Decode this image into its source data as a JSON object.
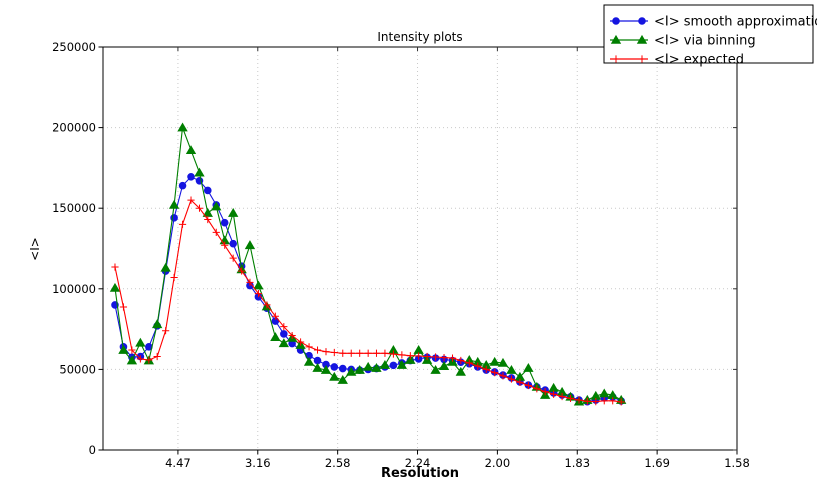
{
  "chart_data": {
    "type": "line",
    "title": "Intensity plots",
    "xlabel": "Resolution",
    "ylabel": "<I>",
    "grid": {
      "show": true,
      "style": "dotted",
      "color": "#c9c9c9"
    },
    "legend": {
      "position": "top-right-outside",
      "border_color": "#000000",
      "background": "#ffffff"
    },
    "x_axis": {
      "min": 0.0031,
      "max": 0.4,
      "scale": "1/d^2",
      "ticks": [
        {
          "value": 0.05,
          "label": "4.47"
        },
        {
          "value": 0.1,
          "label": "3.16"
        },
        {
          "value": 0.15,
          "label": "2.58"
        },
        {
          "value": 0.2,
          "label": "2.24"
        },
        {
          "value": 0.25,
          "label": "2.00"
        },
        {
          "value": 0.3,
          "label": "1.83"
        },
        {
          "value": 0.35,
          "label": "1.69"
        },
        {
          "value": 0.4,
          "label": "1.58"
        }
      ]
    },
    "y_axis": {
      "min": 0,
      "max": 250000,
      "ticks": [
        {
          "value": 0,
          "label": "0"
        },
        {
          "value": 50000,
          "label": "50000"
        },
        {
          "value": 100000,
          "label": "100000"
        },
        {
          "value": 150000,
          "label": "150000"
        },
        {
          "value": 200000,
          "label": "200000"
        },
        {
          "value": 250000,
          "label": "250000"
        }
      ]
    },
    "x": [
      0.0106,
      0.0159,
      0.0212,
      0.0265,
      0.0318,
      0.037,
      0.0423,
      0.0476,
      0.0529,
      0.0582,
      0.0635,
      0.0687,
      0.074,
      0.0793,
      0.0846,
      0.0899,
      0.0951,
      0.1004,
      0.1057,
      0.111,
      0.1163,
      0.1215,
      0.1268,
      0.1321,
      0.1374,
      0.1427,
      0.1479,
      0.1532,
      0.1585,
      0.1638,
      0.1691,
      0.1743,
      0.1796,
      0.1849,
      0.1902,
      0.1955,
      0.2007,
      0.206,
      0.2113,
      0.2166,
      0.2219,
      0.2271,
      0.2324,
      0.2377,
      0.243,
      0.2483,
      0.2535,
      0.2588,
      0.2641,
      0.2694,
      0.2747,
      0.2799,
      0.2852,
      0.2905,
      0.2958,
      0.3011,
      0.3063,
      0.3116,
      0.3169,
      0.3222,
      0.3275
    ],
    "series": [
      {
        "name": "<I> smooth approximation",
        "color": "#1515e0",
        "marker": "circle",
        "values": [
          90000,
          64000,
          57500,
          58000,
          64000,
          77000,
          111000,
          144000,
          164000,
          169500,
          167000,
          161000,
          152000,
          141000,
          128000,
          114000,
          102000,
          95000,
          88000,
          80000,
          72000,
          66000,
          62000,
          58500,
          55500,
          53000,
          51500,
          50500,
          50000,
          49500,
          50000,
          50500,
          51500,
          52500,
          54000,
          55500,
          56500,
          57500,
          57000,
          56200,
          55500,
          54500,
          53500,
          51500,
          49600,
          48400,
          46500,
          44700,
          42200,
          40300,
          39100,
          37200,
          35400,
          34100,
          33000,
          31000,
          30000,
          31000,
          32300,
          32900,
          30400
        ]
      },
      {
        "name": "<I> via binning",
        "color": "#007f00",
        "marker": "triangle",
        "values": [
          100500,
          62000,
          55500,
          66500,
          55500,
          78000,
          113000,
          152000,
          200000,
          186000,
          172000,
          147000,
          151000,
          130000,
          147000,
          112000,
          127000,
          102000,
          89000,
          70000,
          66200,
          69500,
          65100,
          54600,
          50800,
          49600,
          45300,
          43400,
          48400,
          49600,
          51500,
          50800,
          52700,
          62000,
          52700,
          55800,
          62000,
          55800,
          49600,
          52000,
          54600,
          48400,
          55800,
          54600,
          52700,
          54600,
          54000,
          49600,
          45300,
          50800,
          39100,
          34100,
          38500,
          36000,
          33000,
          30000,
          31000,
          33500,
          35000,
          34000,
          31000
        ]
      },
      {
        "name": "<I> expected",
        "color": "#ff0000",
        "marker": "plus",
        "values": [
          113500,
          88700,
          62000,
          56500,
          55800,
          58000,
          74000,
          107000,
          140000,
          155000,
          150000,
          143000,
          135000,
          127000,
          119000,
          111000,
          104000,
          97000,
          90000,
          83000,
          76500,
          71000,
          67000,
          64000,
          62000,
          61000,
          60500,
          60000,
          60000,
          60000,
          60000,
          60000,
          60000,
          59500,
          59000,
          58500,
          58300,
          58000,
          57700,
          57300,
          57000,
          55500,
          54000,
          52000,
          50000,
          48000,
          46000,
          44000,
          42000,
          40000,
          38000,
          36200,
          34600,
          33200,
          32000,
          31000,
          30200,
          30000,
          30500,
          30500,
          29800
        ]
      }
    ]
  }
}
